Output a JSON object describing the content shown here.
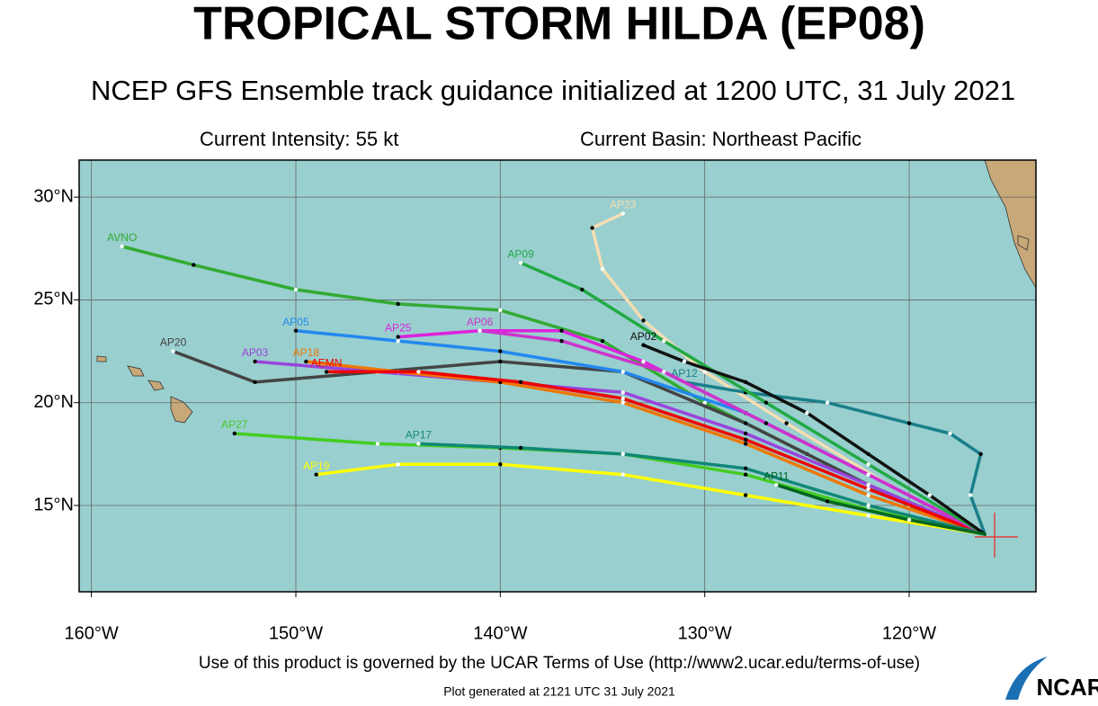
{
  "chart_data": {
    "type": "track",
    "title": "TROPICAL STORM HILDA (EP08)",
    "subtitle": "NCEP GFS Ensemble track guidance initialized at 1200 UTC, 31 July 2021",
    "intensity": "Current Intensity: 55 kt",
    "basin": "Current Basin: Northeast Pacific",
    "footer": "Use of this product is governed by the UCAR Terms of Use (http://www2.ucar.edu/terms-of-use)",
    "generated": "Plot generated at 2121 UTC   31 July 2021",
    "logo": "NCAR",
    "xlim": [
      -160.6,
      -113.8
    ],
    "ylim": [
      10.8,
      31.8
    ],
    "xticks": [
      {
        "value": -160,
        "label": "160°W"
      },
      {
        "value": -150,
        "label": "150°W"
      },
      {
        "value": -140,
        "label": "140°W"
      },
      {
        "value": -130,
        "label": "130°W"
      },
      {
        "value": -120,
        "label": "120°W"
      }
    ],
    "yticks": [
      {
        "value": 15,
        "label": "15°N"
      },
      {
        "value": 20,
        "label": "20°N"
      },
      {
        "value": 25,
        "label": "25°N"
      },
      {
        "value": 30,
        "label": "30°N"
      }
    ],
    "grid": true,
    "series": [
      {
        "name": "AVNO",
        "color": "#33aa33",
        "x": [
          -116.3,
          -120,
          -125,
          -130,
          -135,
          -140,
          -145,
          -150,
          -155,
          -158.5
        ],
        "values": [
          13.6,
          15,
          17.5,
          20,
          23,
          24.5,
          24.8,
          25.5,
          26.7,
          27.6
        ]
      },
      {
        "name": "AP23",
        "color": "#f5deb3",
        "x": [
          -116.3,
          -121,
          -126,
          -130,
          -133,
          -135,
          -135.5,
          -134
        ],
        "values": [
          13.6,
          16,
          19,
          21.5,
          24,
          26.5,
          28.5,
          29.2
        ]
      },
      {
        "name": "AP12",
        "color": "#1a7f8a",
        "x": [
          -116.3,
          -117,
          -116.5,
          -118,
          -120,
          -124,
          -128,
          -131
        ],
        "values": [
          13.6,
          15.5,
          17.5,
          18.5,
          19,
          20,
          20.5,
          21
        ]
      },
      {
        "name": "AP20",
        "color": "#444444",
        "x": [
          -116.3,
          -122,
          -128,
          -134,
          -140,
          -146,
          -152,
          -156
        ],
        "values": [
          13.6,
          16,
          19,
          21.5,
          22,
          21.5,
          21,
          22.5
        ]
      },
      {
        "name": "AP05",
        "color": "#2288ee",
        "x": [
          -116.3,
          -122,
          -128,
          -134,
          -140,
          -145,
          -150
        ],
        "values": [
          13.6,
          16.5,
          19.5,
          21.5,
          22.5,
          23,
          23.5
        ]
      },
      {
        "name": "AP25",
        "color": "#dd22dd",
        "x": [
          -116.3,
          -122,
          -128,
          -133,
          -137,
          -141,
          -145
        ],
        "values": [
          13.6,
          16.5,
          19.5,
          22,
          23.5,
          23.5,
          23.2
        ]
      },
      {
        "name": "AP03",
        "color": "#9944dd",
        "x": [
          -116.3,
          -122,
          -128,
          -134,
          -140,
          -146,
          -152
        ],
        "values": [
          13.6,
          16,
          18.5,
          20.5,
          21,
          21.5,
          22
        ]
      },
      {
        "name": "AP18",
        "color": "#ee7700",
        "x": [
          -116.3,
          -122,
          -128,
          -134,
          -140,
          -145,
          -149.5
        ],
        "values": [
          13.6,
          15.5,
          18,
          20,
          21,
          21.5,
          22
        ]
      },
      {
        "name": "AEMN",
        "color": "#ee0000",
        "x": [
          -116.3,
          -122,
          -128,
          -134,
          -139,
          -144,
          -148.5
        ],
        "values": [
          13.6,
          15.8,
          18.2,
          20.2,
          21,
          21.5,
          21.5
        ]
      },
      {
        "name": "AP19",
        "color": "#ffff00",
        "x": [
          -116.3,
          -122,
          -128,
          -134,
          -140,
          -145,
          -149
        ],
        "values": [
          13.6,
          14.5,
          15.5,
          16.5,
          17,
          17,
          16.5
        ]
      },
      {
        "name": "AP27",
        "color": "#44cc22",
        "x": [
          -116.3,
          -122,
          -128,
          -134,
          -140,
          -146,
          -153
        ],
        "values": [
          13.6,
          14.8,
          16.5,
          17.5,
          17.8,
          18,
          18.5
        ]
      },
      {
        "name": "AP17",
        "color": "#118877",
        "x": [
          -116.3,
          -122,
          -128,
          -134,
          -139,
          -144
        ],
        "values": [
          13.6,
          15,
          16.8,
          17.5,
          17.8,
          18
        ]
      },
      {
        "name": "AP06",
        "color": "#cc33cc",
        "x": [
          -116.3,
          -122,
          -127,
          -132,
          -137,
          -141
        ],
        "values": [
          13.6,
          16.5,
          19,
          21.5,
          23,
          23.5
        ]
      },
      {
        "name": "AP09",
        "color": "#22aa44",
        "x": [
          -116.3,
          -122,
          -127,
          -132,
          -136,
          -139
        ],
        "values": [
          13.6,
          17,
          20,
          23,
          25.5,
          26.8
        ]
      },
      {
        "name": "AP02",
        "color": "#111111",
        "x": [
          -116.3,
          -119,
          -122,
          -125,
          -128,
          -131,
          -133
        ],
        "values": [
          13.6,
          15.5,
          17.5,
          19.5,
          21,
          22,
          22.8
        ]
      },
      {
        "name": "AP11",
        "color": "#006622",
        "x": [
          -116.3,
          -120,
          -124,
          -126.5
        ],
        "values": [
          13.6,
          14.3,
          15.2,
          16
        ]
      }
    ]
  }
}
